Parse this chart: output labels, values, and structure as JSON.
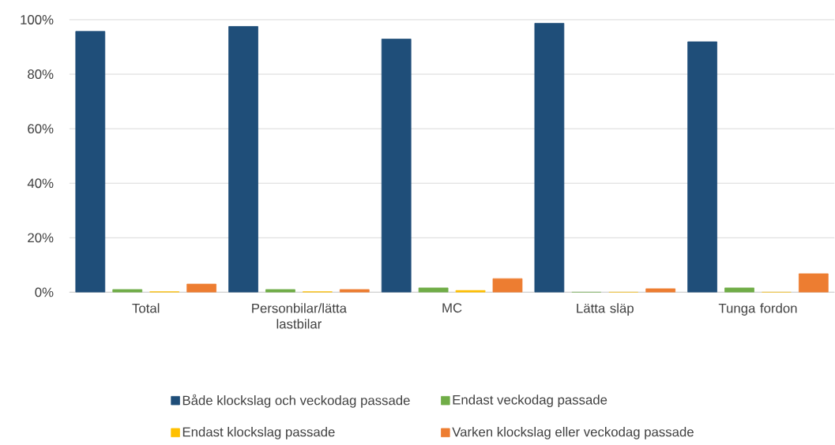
{
  "chart_data": {
    "type": "bar",
    "categories": [
      "Total",
      "Personbilar/lätta lastbilar",
      "MC",
      "Lätta släp",
      "Tunga fordon"
    ],
    "series": [
      {
        "name": "Både klockslag och veckodag passade",
        "color": "#1f4e79",
        "values": [
          95.7,
          97.5,
          92.9,
          98.7,
          91.9
        ]
      },
      {
        "name": "Endast veckodag passade",
        "color": "#70ad47",
        "values": [
          1.0,
          1.0,
          1.6,
          0,
          1.6
        ]
      },
      {
        "name": "Endast klockslag passade",
        "color": "#ffc000",
        "values": [
          0.2,
          0.2,
          0.7,
          0,
          0
        ]
      },
      {
        "name": "Varken klockslag eller veckodag passade",
        "color": "#ed7d31",
        "values": [
          3.0,
          1.0,
          5.0,
          1.3,
          6.8
        ]
      }
    ],
    "ylim": [
      0,
      100
    ],
    "yticks": [
      {
        "value": 0,
        "label": "0%"
      },
      {
        "value": 20,
        "label": "20%"
      },
      {
        "value": 40,
        "label": "40%"
      },
      {
        "value": 60,
        "label": "60%"
      },
      {
        "value": 80,
        "label": "80%"
      },
      {
        "value": 100,
        "label": "100%"
      }
    ],
    "grid": "y",
    "legend": "bottom"
  }
}
